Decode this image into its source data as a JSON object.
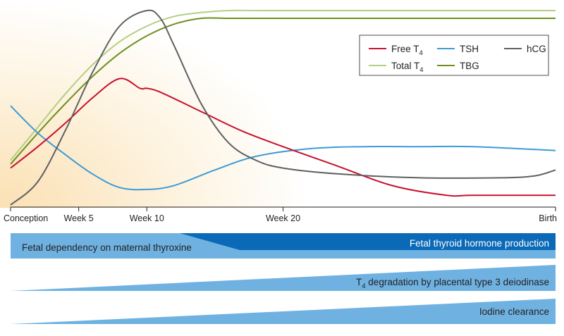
{
  "chart_data": {
    "type": "line",
    "x_ticks": [
      {
        "label": "Conception",
        "x": 0
      },
      {
        "label": "Week 5",
        "x": 5
      },
      {
        "label": "Week 10",
        "x": 10
      },
      {
        "label": "Week 20",
        "x": 20
      },
      {
        "label": "Birth",
        "x": 40
      }
    ],
    "xlim": [
      0,
      40
    ],
    "ylim": [
      0,
      1
    ],
    "grid": false,
    "legend_position": "top-right",
    "series": [
      {
        "name": "Free T",
        "name_subscript": "4",
        "color": "#c8102e",
        "points": [
          [
            0,
            0.19
          ],
          [
            2,
            0.3
          ],
          [
            4,
            0.42
          ],
          [
            6,
            0.55
          ],
          [
            8,
            0.65
          ],
          [
            9.5,
            0.6
          ],
          [
            10,
            0.6
          ],
          [
            11,
            0.58
          ],
          [
            14,
            0.48
          ],
          [
            17,
            0.38
          ],
          [
            20,
            0.3
          ],
          [
            24,
            0.2
          ],
          [
            28,
            0.1
          ],
          [
            32,
            0.05
          ],
          [
            34,
            0.05
          ],
          [
            40,
            0.05
          ]
        ]
      },
      {
        "name": "TSH",
        "color": "#3d9bd6",
        "points": [
          [
            0,
            0.51
          ],
          [
            2,
            0.37
          ],
          [
            4,
            0.26
          ],
          [
            6,
            0.16
          ],
          [
            8,
            0.09
          ],
          [
            10,
            0.08
          ],
          [
            12,
            0.1
          ],
          [
            15,
            0.18
          ],
          [
            18,
            0.25
          ],
          [
            22,
            0.29
          ],
          [
            26,
            0.3
          ],
          [
            30,
            0.3
          ],
          [
            34,
            0.3
          ],
          [
            40,
            0.28
          ]
        ]
      },
      {
        "name": "hCG",
        "color": "#5f6062",
        "points": [
          [
            0,
            0.0
          ],
          [
            2,
            0.12
          ],
          [
            4,
            0.38
          ],
          [
            6,
            0.68
          ],
          [
            8,
            0.92
          ],
          [
            10,
            1.0
          ],
          [
            11,
            0.96
          ],
          [
            12,
            0.82
          ],
          [
            14,
            0.52
          ],
          [
            16,
            0.32
          ],
          [
            18,
            0.23
          ],
          [
            20,
            0.19
          ],
          [
            24,
            0.16
          ],
          [
            30,
            0.14
          ],
          [
            36,
            0.14
          ],
          [
            38.5,
            0.15
          ],
          [
            40,
            0.18
          ]
        ]
      },
      {
        "name": "Total T",
        "name_subscript": "4",
        "color": "#b2cf84",
        "points": [
          [
            0,
            0.23
          ],
          [
            2,
            0.4
          ],
          [
            4,
            0.57
          ],
          [
            6,
            0.72
          ],
          [
            8,
            0.84
          ],
          [
            10,
            0.92
          ],
          [
            12,
            0.97
          ],
          [
            14,
            0.99
          ],
          [
            16,
            1.0
          ],
          [
            20,
            1.0
          ],
          [
            40,
            1.0
          ]
        ]
      },
      {
        "name": "TBG",
        "color": "#6e8e1e",
        "points": [
          [
            0,
            0.21
          ],
          [
            2,
            0.37
          ],
          [
            4,
            0.52
          ],
          [
            6,
            0.66
          ],
          [
            8,
            0.78
          ],
          [
            10,
            0.87
          ],
          [
            12,
            0.93
          ],
          [
            14,
            0.96
          ],
          [
            16,
            0.96
          ],
          [
            20,
            0.96
          ],
          [
            40,
            0.96
          ]
        ]
      }
    ]
  },
  "bands": [
    {
      "label_left": "Fetal dependency on maternal thyroxine",
      "label_right": "Fetal thyroid hormone production",
      "color_light": "#6fb2e2",
      "color_dark": "#0b6ab7"
    },
    {
      "label_prefix": "T",
      "label_subscript": "4",
      "label_rest": " degradation by placental type 3 deiodinase",
      "color": "#6fb2e2"
    },
    {
      "label": "Iodine clearance",
      "color": "#6fb2e2"
    }
  ]
}
